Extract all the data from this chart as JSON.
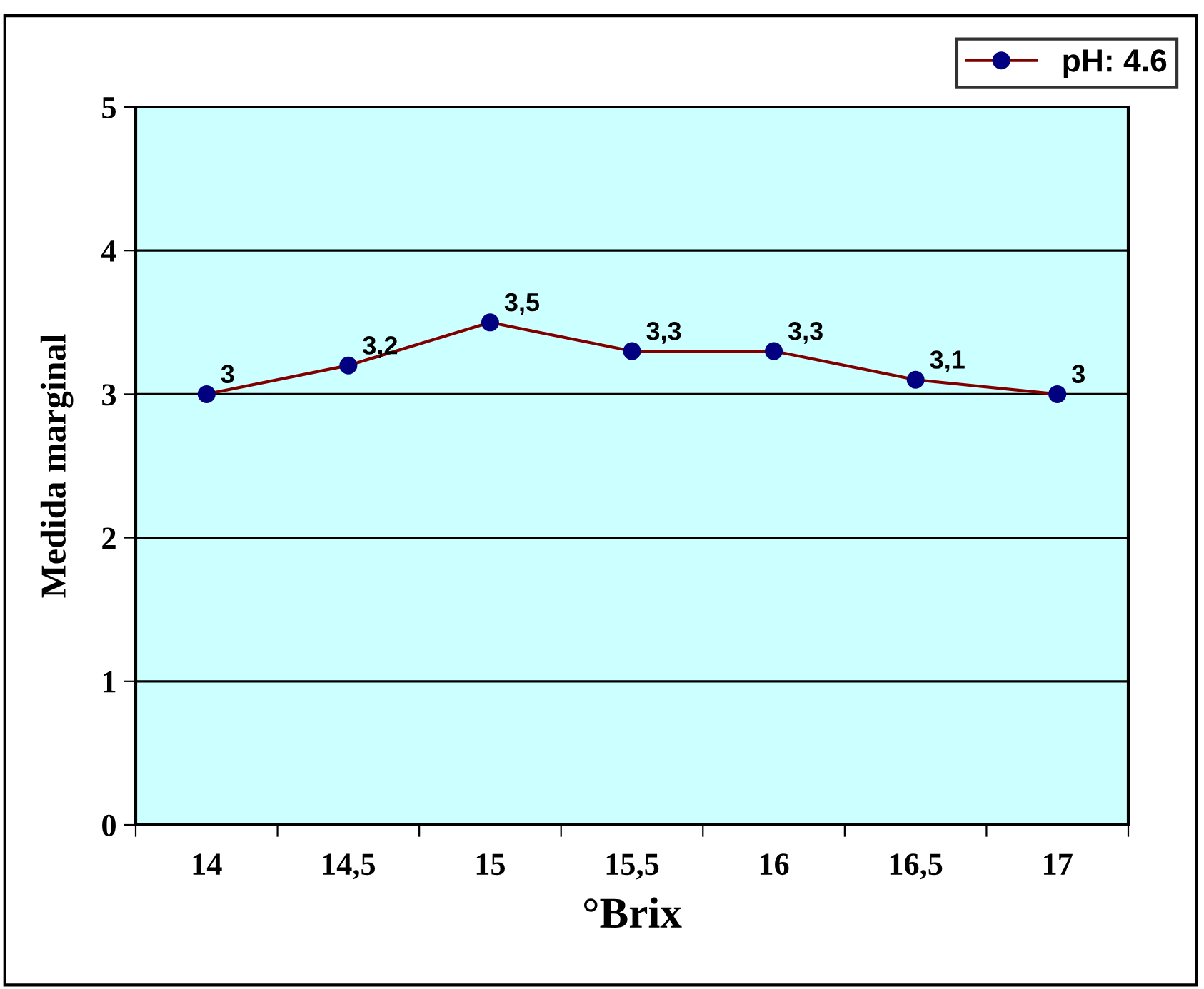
{
  "chart_data": {
    "type": "line",
    "xlabel": "°Brix",
    "ylabel": "Medida marginal",
    "categories": [
      "14",
      "14,5",
      "15",
      "15,5",
      "16",
      "16,5",
      "17"
    ],
    "series": [
      {
        "name": "pH: 4.6",
        "color": "#800000",
        "values": [
          3,
          3.2,
          3.5,
          3.3,
          3.3,
          3.1,
          3
        ],
        "value_labels": [
          "3",
          "3,2",
          "3,5",
          "3,3",
          "3,3",
          "3,1",
          "3"
        ]
      }
    ],
    "ylim": [
      0,
      5
    ],
    "yticks": [
      0,
      1,
      2,
      3,
      4,
      5
    ],
    "grid": "y",
    "legend": "top right",
    "marker": "circle",
    "line_style": "solid"
  }
}
